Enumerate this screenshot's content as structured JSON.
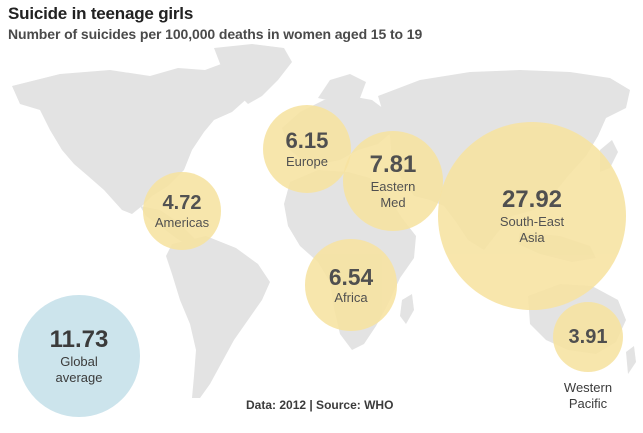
{
  "title": "Suicide in teenage girls",
  "subtitle": "Number of suicides per 100,000 deaths in women aged 15 to 19",
  "source": "Data: 2012  |  Source: WHO",
  "colors": {
    "region": "#f7e3a1",
    "global": "#cce4ec",
    "land": "#e3e3e3",
    "text": "#3b3b3b"
  },
  "chart_data": {
    "type": "bubble-map",
    "title": "Suicide in teenage girls",
    "subtitle": "Number of suicides per 100,000 deaths in women aged 15 to 19",
    "regions": [
      {
        "name": "Americas",
        "value": 4.72
      },
      {
        "name": "Europe",
        "value": 6.15
      },
      {
        "name": "Eastern Med",
        "value": 7.81
      },
      {
        "name": "Africa",
        "value": 6.54
      },
      {
        "name": "South-East Asia",
        "value": 27.92
      },
      {
        "name": "Western Pacific",
        "value": 3.91
      }
    ],
    "global": {
      "name": "Global average",
      "value": 11.73
    }
  }
}
